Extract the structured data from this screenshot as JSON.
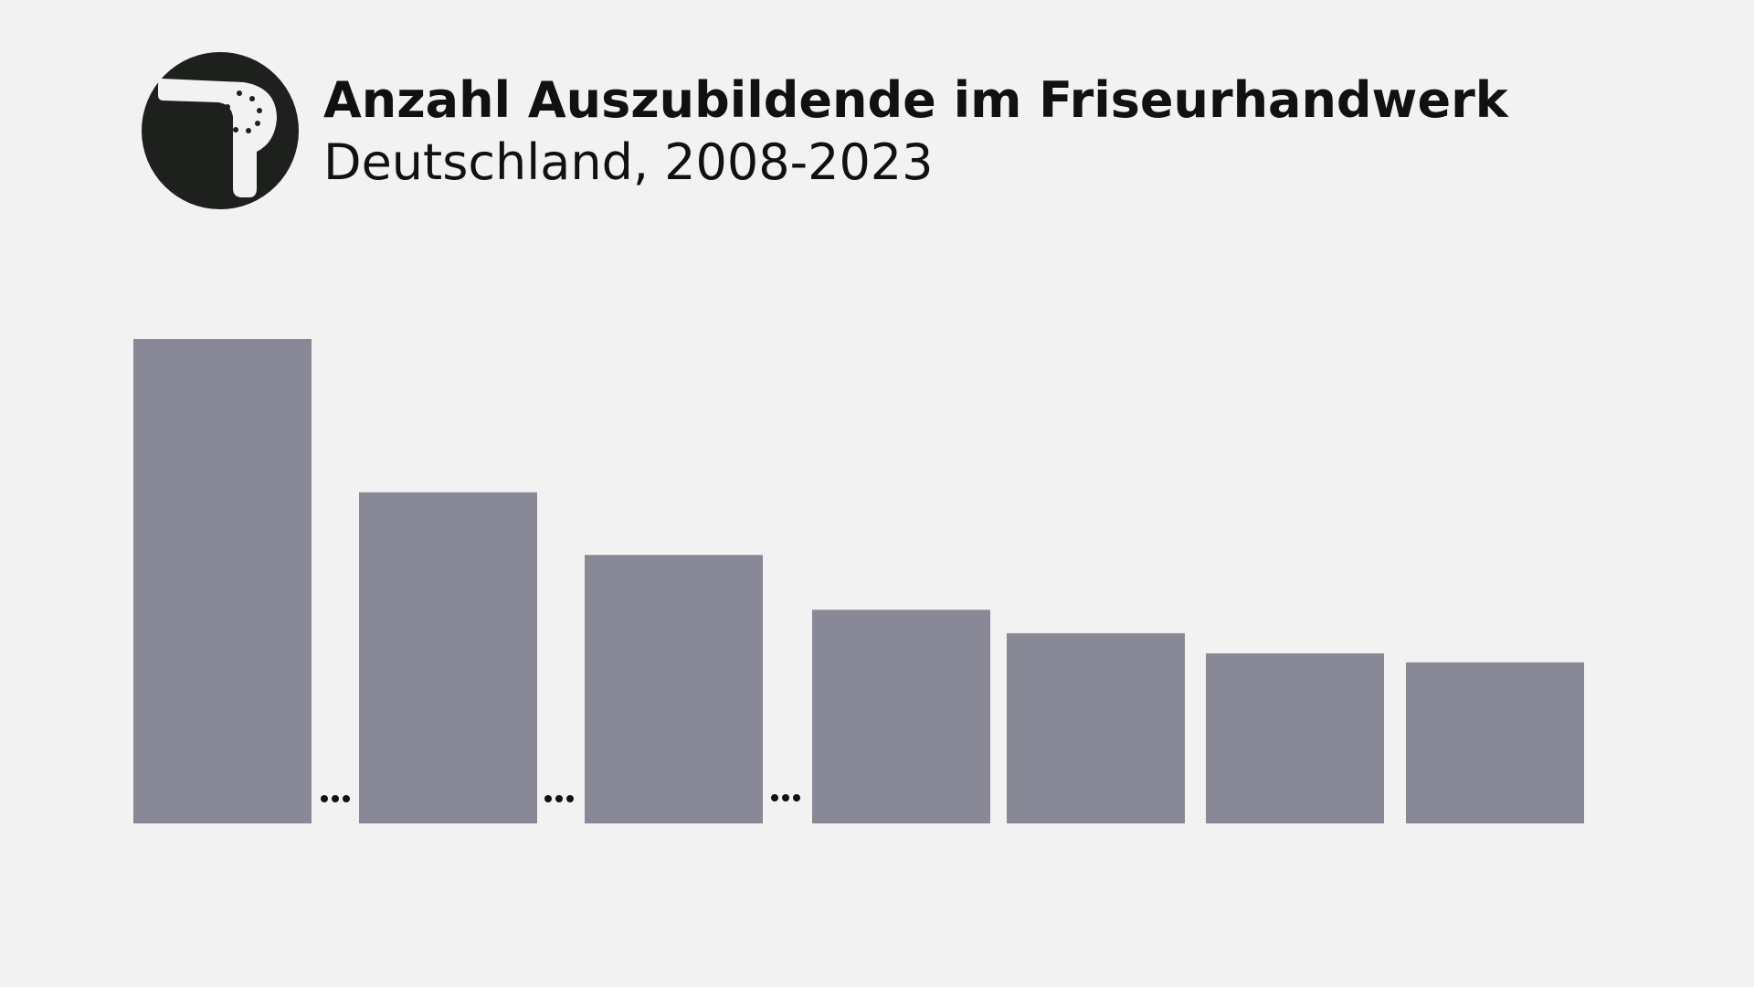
{
  "chart_data": {
    "type": "bar",
    "title": "Anzahl Auszubildende im Friseurhandwerk",
    "subtitle": "Deutschland, 2008-2023",
    "categories": [
      null,
      null,
      null,
      null,
      null,
      null,
      null
    ],
    "values": [
      43300,
      29600,
      24000,
      19100,
      17000,
      15200,
      14400
    ],
    "color": "#898896"
  }
}
